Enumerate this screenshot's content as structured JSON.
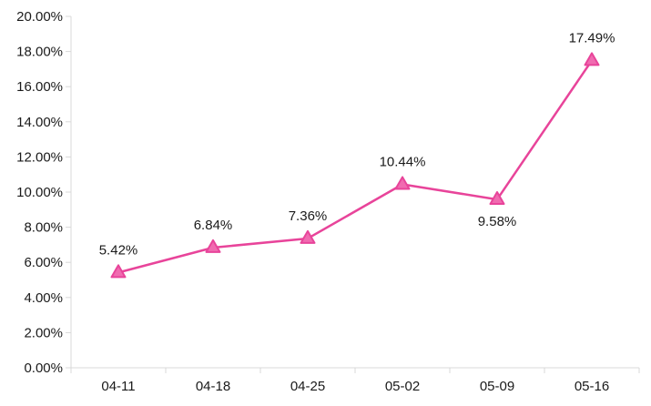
{
  "chart_data": {
    "type": "line",
    "categories": [
      "04-11",
      "04-18",
      "04-25",
      "05-02",
      "05-09",
      "05-16"
    ],
    "series": [
      {
        "values": [
          5.42,
          6.84,
          7.36,
          10.44,
          9.58,
          17.49
        ],
        "labels": [
          "5.42%",
          "6.84%",
          "7.36%",
          "10.44%",
          "9.58%",
          "17.49%"
        ],
        "label_positions": [
          "above",
          "above",
          "above",
          "above",
          "below",
          "above"
        ],
        "color": "#e8449a",
        "marker": "triangle"
      }
    ],
    "ylim": [
      0,
      20
    ],
    "yticks": [
      0,
      2,
      4,
      6,
      8,
      10,
      12,
      14,
      16,
      18,
      20
    ],
    "ytick_labels": [
      "0.00%",
      "2.00%",
      "4.00%",
      "6.00%",
      "8.00%",
      "10.00%",
      "12.00%",
      "14.00%",
      "16.00%",
      "18.00%",
      "20.00%"
    ],
    "grid": false,
    "axis_color": "#d9d9d9",
    "marker_fill": "#f06bb0"
  }
}
